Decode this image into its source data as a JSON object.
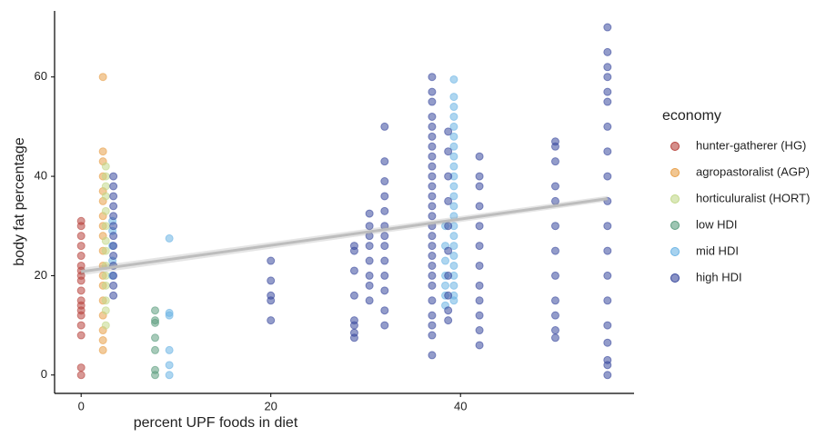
{
  "chart_data": {
    "type": "scatter",
    "x_label": "percent UPF foods in diet",
    "y_label": "body fat percentage",
    "legend_title": "economy",
    "legend_position": "right",
    "xlim": [
      -2.8,
      58.3
    ],
    "ylim": [
      -3.7,
      73.3
    ],
    "xticks": [
      0,
      20,
      40
    ],
    "yticks": [
      0,
      20,
      40,
      60
    ],
    "grid": false,
    "trend": {
      "color": "#bdbdbd",
      "x": [
        0,
        55.5
      ],
      "values": [
        20.8,
        35.5
      ]
    },
    "series": [
      {
        "name": "hunter-gatherer (HG)",
        "color": "#b8443e",
        "x": [
          0,
          0,
          0,
          0,
          0,
          0,
          0,
          0,
          0,
          0,
          0,
          0,
          0,
          0,
          0,
          0,
          0,
          0
        ],
        "values": [
          0,
          1.5,
          8,
          10,
          12,
          13,
          14,
          15,
          17,
          19,
          20,
          21,
          22,
          24,
          26,
          28,
          30,
          31
        ]
      },
      {
        "name": "agropastoralist (AGP)",
        "color": "#e8a04a",
        "x": [
          2.3,
          2.3,
          2.3,
          2.3,
          2.3,
          2.3,
          2.3,
          2.3,
          2.3,
          2.3,
          2.3,
          2.3,
          2.3,
          2.3,
          2.3,
          2.3,
          2.3,
          2.3
        ],
        "values": [
          5,
          7,
          9,
          12,
          15,
          18,
          20,
          22,
          25,
          28,
          30,
          32,
          35,
          37,
          40,
          43,
          45,
          60
        ]
      },
      {
        "name": "horticuluralist (HORT)",
        "color": "#c2d88a",
        "x": [
          2.6,
          2.6,
          2.6,
          2.6,
          2.6,
          2.6,
          2.6,
          2.6,
          2.6,
          2.6,
          2.6,
          2.6,
          2.6,
          2.6
        ],
        "values": [
          10,
          13,
          15,
          18,
          20,
          22,
          25,
          27,
          30,
          33,
          36,
          38,
          40,
          42
        ]
      },
      {
        "name": "low HDI",
        "color": "#5e9e80",
        "x": [
          7.8,
          7.8,
          7.8,
          7.8,
          7.8,
          7.8,
          7.8
        ],
        "values": [
          0,
          1,
          5,
          7.5,
          10.5,
          11,
          13
        ]
      },
      {
        "name": "mid HDI",
        "color": "#6cb4e4",
        "x": [
          3.3,
          3.3,
          3.3,
          3.3,
          3.3,
          9.3,
          9.3,
          9.3,
          9.3,
          9.3,
          9.3,
          39.3,
          39.3,
          39.3,
          39.3,
          39.3,
          39.3,
          39.3,
          39.3,
          39.3,
          39.3,
          39.3,
          39.3,
          39.3,
          39.3,
          39.3,
          39.3,
          39.3,
          39.3,
          39.3,
          39.3,
          39.3,
          39.3,
          39.3,
          38.4,
          38.4,
          38.4,
          38.4,
          38.4,
          38.4,
          38.4
        ],
        "values": [
          20,
          23,
          26,
          29,
          31,
          0,
          2,
          5,
          12,
          12.5,
          27.5,
          15,
          16,
          18,
          20,
          22,
          24,
          26,
          28,
          30,
          32,
          34,
          36,
          38,
          40,
          42,
          44,
          46,
          48,
          50,
          52,
          54,
          56,
          59.5,
          14,
          16,
          18,
          20,
          23,
          26,
          30
        ]
      },
      {
        "name": "high HDI",
        "color": "#3a4a9e",
        "x": [
          3.4,
          3.4,
          3.4,
          3.4,
          3.4,
          3.4,
          3.4,
          3.4,
          3.4,
          3.4,
          3.4,
          3.4,
          3.4,
          20,
          20,
          20,
          20,
          20,
          28.8,
          28.8,
          28.8,
          28.8,
          28.8,
          28.8,
          28.8,
          28.8,
          30.4,
          30.4,
          30.4,
          30.4,
          30.4,
          30.4,
          30.4,
          30.4,
          32,
          32,
          32,
          32,
          32,
          32,
          32,
          32,
          32,
          32,
          32,
          32,
          32,
          37,
          37,
          37,
          37,
          37,
          37,
          37,
          37,
          37,
          37,
          37,
          37,
          37,
          37,
          37,
          37,
          37,
          37,
          37,
          37,
          37,
          37,
          37,
          37,
          37,
          37,
          38.7,
          38.7,
          38.7,
          38.7,
          38.7,
          38.7,
          38.7,
          38.7,
          38.7,
          38.7,
          42,
          42,
          42,
          42,
          42,
          42,
          42,
          42,
          42,
          42,
          42,
          42,
          50,
          50,
          50,
          50,
          50,
          50,
          50,
          50,
          50,
          50,
          50,
          50,
          55.5,
          55.5,
          55.5,
          55.5,
          55.5,
          55.5,
          55.5,
          55.5,
          55.5,
          55.5,
          55.5,
          55.5,
          55.5,
          55.5,
          55.5,
          55.5,
          55.5,
          55.5,
          55.5
        ],
        "values": [
          16,
          18,
          20,
          22,
          24,
          26,
          28,
          30,
          32,
          34,
          36,
          38,
          40,
          11,
          15,
          16,
          19,
          23,
          7.5,
          8.5,
          10,
          11,
          16,
          21,
          25,
          26,
          15,
          18,
          20,
          23,
          26,
          28,
          30,
          32.5,
          10,
          13,
          17,
          20,
          23,
          26,
          28,
          30,
          33,
          36,
          39,
          43,
          50,
          4,
          8,
          10,
          12,
          15,
          18,
          20,
          22,
          24,
          26,
          28,
          30,
          32,
          34,
          36,
          38,
          40,
          42,
          44,
          46,
          48,
          50,
          52,
          55,
          57,
          60,
          11,
          13,
          16,
          20,
          25,
          30,
          35,
          40,
          45,
          49,
          6,
          9,
          12,
          15,
          18,
          22,
          26,
          30,
          34,
          38,
          40,
          44,
          7.5,
          9,
          12,
          15,
          20,
          25,
          30,
          35,
          38,
          43,
          46,
          47,
          0,
          2,
          3,
          6.5,
          10,
          15,
          20,
          25,
          30,
          35,
          40,
          45,
          50,
          55,
          57,
          60,
          62,
          65,
          70
        ]
      }
    ]
  }
}
